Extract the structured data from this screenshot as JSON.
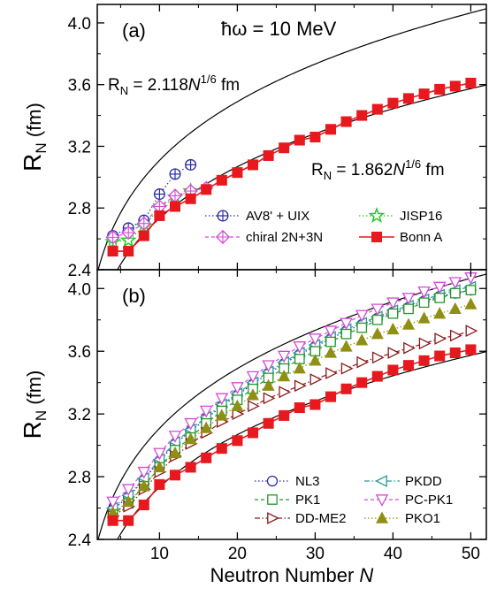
{
  "chart_data": [
    {
      "type": "line",
      "panel_label": "(a)",
      "annotation": "ħω = 10 MeV",
      "formula_upper": {
        "coef": "2.118",
        "prefix": "R",
        "sub": "N",
        "eq": " = ",
        "var": "N",
        "exp": "1/6",
        "unit": " fm",
        "k": 2.118
      },
      "formula_lower": {
        "coef": "1.862",
        "prefix": "R",
        "sub": "N",
        "eq": " = ",
        "var": "N",
        "exp": "1/6",
        "unit": " fm",
        "k": 1.862
      },
      "xlim": [
        2,
        52
      ],
      "ylim": [
        2.4,
        4.12
      ],
      "yticks": [
        "2.4",
        "2.8",
        "3.2",
        "3.6",
        "4.0"
      ],
      "ytick_values": [
        2.4,
        2.8,
        3.2,
        3.6,
        4.0
      ],
      "ylabel_main": "R",
      "ylabel_sub": "N",
      "ylabel_unit": " (fm)",
      "legend_position": "lower-right",
      "series": [
        {
          "name": "AV8' + UIX",
          "color": "#2b2ba6",
          "marker": "circle-plus",
          "dash": "dotted",
          "x": [
            4,
            6,
            8,
            10,
            12,
            14
          ],
          "y": [
            2.62,
            2.67,
            2.72,
            2.89,
            3.02,
            3.08
          ]
        },
        {
          "name": "JISP16",
          "color": "#22cc22",
          "marker": "star",
          "dash": "dotted",
          "x": [
            4,
            6,
            8,
            10,
            12,
            14
          ],
          "y": [
            2.58,
            2.59,
            2.68,
            2.8,
            2.87,
            2.91
          ]
        },
        {
          "name": "chiral 2N+3N",
          "color": "#d24cd2",
          "marker": "diamond-plus",
          "dash": "dashed",
          "x": [
            4,
            6,
            8,
            10,
            12,
            14,
            16
          ],
          "y": [
            2.61,
            2.64,
            2.7,
            2.81,
            2.88,
            2.91,
            2.93
          ]
        },
        {
          "name": "Bonn A",
          "color": "#e8191e",
          "marker": "square-filled",
          "dash": "solid",
          "x": [
            4,
            6,
            8,
            10,
            12,
            14,
            16,
            18,
            20,
            22,
            24,
            26,
            28,
            30,
            32,
            34,
            36,
            38,
            40,
            42,
            44,
            46,
            48,
            50
          ],
          "y": [
            2.52,
            2.52,
            2.62,
            2.75,
            2.81,
            2.86,
            2.92,
            2.98,
            3.03,
            3.08,
            3.14,
            3.19,
            3.24,
            3.26,
            3.31,
            3.36,
            3.4,
            3.44,
            3.48,
            3.51,
            3.54,
            3.57,
            3.59,
            3.61
          ]
        }
      ]
    },
    {
      "type": "line",
      "panel_label": "(b)",
      "xlim": [
        2,
        52
      ],
      "ylim": [
        2.4,
        4.12
      ],
      "xticks": [
        "10",
        "20",
        "30",
        "40",
        "50"
      ],
      "xtick_values": [
        10,
        20,
        30,
        40,
        50
      ],
      "yticks": [
        "2.4",
        "2.8",
        "3.2",
        "3.6",
        "4.0"
      ],
      "ytick_values": [
        2.4,
        2.8,
        3.2,
        3.6,
        4.0
      ],
      "ylabel_main": "R",
      "ylabel_sub": "N",
      "ylabel_unit": " (fm)",
      "xlabel_prefix": "Neutron Number ",
      "xlabel_var": "N",
      "curves_k": [
        2.118,
        1.862
      ],
      "legend_position": "lower-right",
      "series": [
        {
          "name": "NL3",
          "color": "#2b2ba6",
          "marker": "circle",
          "dash": "dotted",
          "x": [
            4,
            6,
            8,
            10,
            12,
            14,
            16,
            18,
            20,
            22,
            24,
            26,
            28,
            30,
            32,
            34,
            36,
            38,
            40,
            42,
            44,
            46,
            48,
            50
          ],
          "y": [
            2.59,
            2.67,
            2.78,
            2.9,
            3.01,
            3.09,
            3.17,
            3.25,
            3.32,
            3.39,
            3.46,
            3.52,
            3.58,
            3.63,
            3.68,
            3.73,
            3.77,
            3.81,
            3.85,
            3.88,
            3.92,
            3.95,
            3.97,
            3.99
          ]
        },
        {
          "name": "PKDD",
          "color": "#2a9a9a",
          "marker": "triangle-left",
          "dash": "dashdot",
          "x": [
            4,
            6,
            8,
            10,
            12,
            14,
            16,
            18,
            20,
            22,
            24,
            26,
            28,
            30,
            32,
            34,
            36,
            38,
            40,
            42,
            44,
            46,
            48,
            50
          ],
          "y": [
            2.6,
            2.68,
            2.79,
            2.91,
            3.02,
            3.1,
            3.18,
            3.26,
            3.33,
            3.4,
            3.47,
            3.53,
            3.59,
            3.64,
            3.69,
            3.74,
            3.78,
            3.82,
            3.86,
            3.89,
            3.93,
            3.96,
            3.99,
            4.01
          ]
        },
        {
          "name": "PK1",
          "color": "#22992a",
          "marker": "square",
          "dash": "dashed",
          "x": [
            4,
            6,
            8,
            10,
            12,
            14,
            16,
            18,
            20,
            22,
            24,
            26,
            28,
            30,
            32,
            34,
            36,
            38,
            40,
            42,
            44,
            46,
            48,
            50
          ],
          "y": [
            2.56,
            2.63,
            2.74,
            2.86,
            2.97,
            3.05,
            3.14,
            3.22,
            3.29,
            3.36,
            3.43,
            3.49,
            3.55,
            3.6,
            3.66,
            3.71,
            3.75,
            3.8,
            3.84,
            3.87,
            3.91,
            3.94,
            3.97,
            3.99
          ]
        },
        {
          "name": "PC-PK1",
          "color": "#d24cd2",
          "marker": "triangle-down",
          "dash": "dashed",
          "x": [
            4,
            6,
            8,
            10,
            12,
            14,
            16,
            18,
            20,
            22,
            24,
            26,
            28,
            30,
            32,
            34,
            36,
            38,
            40,
            42,
            44,
            46,
            48,
            50
          ],
          "y": [
            2.64,
            2.72,
            2.83,
            2.95,
            3.06,
            3.14,
            3.22,
            3.3,
            3.37,
            3.44,
            3.51,
            3.57,
            3.63,
            3.68,
            3.73,
            3.78,
            3.83,
            3.87,
            3.91,
            3.94,
            3.98,
            4.01,
            4.04,
            4.07
          ]
        },
        {
          "name": "DD-ME2",
          "color": "#8b1a1a",
          "marker": "triangle-right",
          "dash": "dashdot",
          "x": [
            4,
            6,
            8,
            10,
            12,
            14,
            16,
            18,
            20,
            22,
            24,
            26,
            28,
            30,
            32,
            34,
            36,
            38,
            40,
            42,
            44,
            46,
            48,
            50
          ],
          "y": [
            2.55,
            2.61,
            2.72,
            2.83,
            2.93,
            3.01,
            3.08,
            3.15,
            3.2,
            3.25,
            3.3,
            3.34,
            3.38,
            3.42,
            3.46,
            3.49,
            3.53,
            3.56,
            3.59,
            3.62,
            3.65,
            3.68,
            3.7,
            3.73
          ]
        },
        {
          "name": "PKO1",
          "color": "#8f8f14",
          "marker": "triangle-up-filled",
          "dash": "dotted",
          "x": [
            4,
            6,
            8,
            10,
            12,
            14,
            16,
            18,
            20,
            22,
            24,
            26,
            28,
            30,
            32,
            34,
            36,
            38,
            40,
            42,
            44,
            46,
            48,
            50
          ],
          "y": [
            2.57,
            2.64,
            2.74,
            2.86,
            2.95,
            3.04,
            3.11,
            3.19,
            3.25,
            3.32,
            3.38,
            3.44,
            3.49,
            3.54,
            3.59,
            3.63,
            3.67,
            3.71,
            3.74,
            3.77,
            3.81,
            3.84,
            3.87,
            3.9
          ]
        },
        {
          "name": "Bonn A",
          "color": "#e8191e",
          "marker": "square-filled",
          "dash": "solid",
          "in_legend": false,
          "x": [
            4,
            6,
            8,
            10,
            12,
            14,
            16,
            18,
            20,
            22,
            24,
            26,
            28,
            30,
            32,
            34,
            36,
            38,
            40,
            42,
            44,
            46,
            48,
            50
          ],
          "y": [
            2.52,
            2.52,
            2.62,
            2.75,
            2.81,
            2.86,
            2.92,
            2.98,
            3.03,
            3.08,
            3.14,
            3.19,
            3.24,
            3.26,
            3.31,
            3.36,
            3.4,
            3.44,
            3.48,
            3.51,
            3.54,
            3.57,
            3.59,
            3.61
          ]
        }
      ]
    }
  ]
}
